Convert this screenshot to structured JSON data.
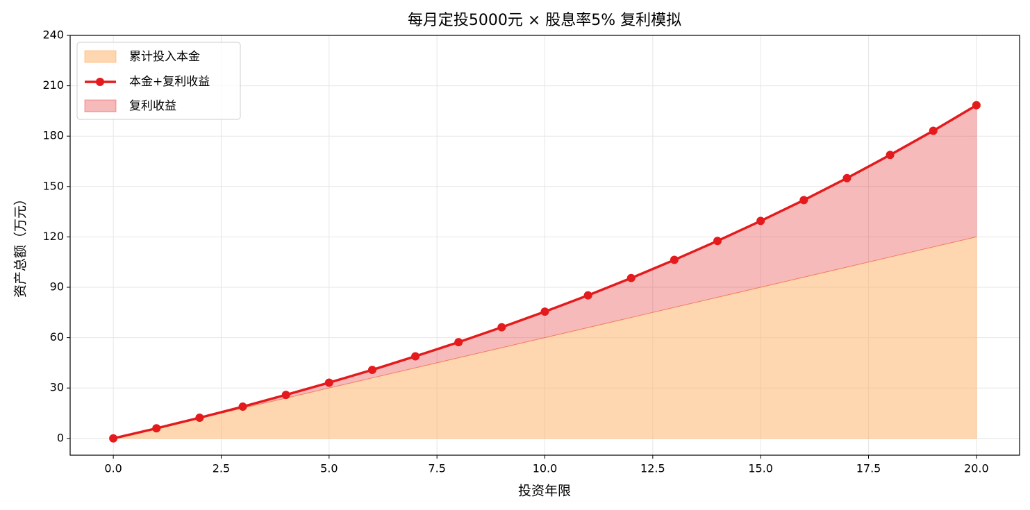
{
  "chart_data": {
    "type": "line",
    "title": "每月定投5000元 × 股息率5% 复利模拟",
    "x_label": "投资年限",
    "y_label": "资产总额（万元）",
    "x": [
      0,
      1,
      2,
      3,
      4,
      5,
      6,
      7,
      8,
      9,
      10,
      11,
      12,
      13,
      14,
      15,
      16,
      17,
      18,
      19,
      20
    ],
    "series": [
      {
        "name": "累计投入本金",
        "color": "#fdae61",
        "fill": "area",
        "values": [
          0,
          6,
          12,
          18,
          24,
          30,
          36,
          42,
          48,
          54,
          60,
          66,
          72,
          78,
          84,
          90,
          96,
          102,
          108,
          114,
          120
        ]
      },
      {
        "name": "本金+复利收益",
        "color": "#e41a1c",
        "marker": true,
        "values": [
          0,
          6,
          12.3,
          18.9,
          25.9,
          33.2,
          40.8,
          48.9,
          57.3,
          66.2,
          75.5,
          85.2,
          95.5,
          106.3,
          117.6,
          129.5,
          141.9,
          155,
          168.8,
          183.2,
          198.4
        ]
      }
    ],
    "fill_between": {
      "name": "复利收益",
      "color": "#e41a1c"
    },
    "xlim": [
      -1,
      21
    ],
    "ylim": [
      -10,
      240
    ],
    "xticks": [
      {
        "value": 0,
        "label": "0.0"
      },
      2.5,
      {
        "value": 5,
        "label": "5.0"
      },
      7.5,
      {
        "value": 10,
        "label": "10.0"
      },
      12.5,
      {
        "value": 15,
        "label": "15.0"
      },
      17.5,
      {
        "value": 20,
        "label": "20.0"
      }
    ],
    "yticks": [
      0,
      30,
      60,
      90,
      120,
      150,
      180,
      210,
      240
    ],
    "grid": true,
    "legend": "upper left"
  }
}
